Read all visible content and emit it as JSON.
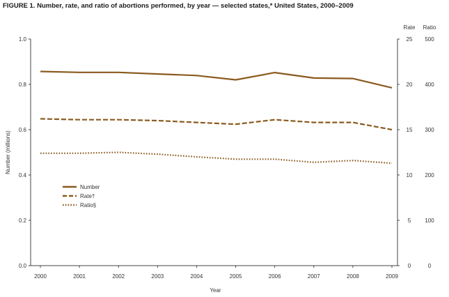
{
  "chart_data": {
    "type": "line",
    "title": "FIGURE 1. Number, rate, and ratio of abortions performed, by year — selected states,* United States, 2000–2009",
    "xlabel": "Year",
    "ylabel": "Number (millions)",
    "right_axis_headers": [
      "Rate",
      "Ratio"
    ],
    "x": [
      "2000",
      "2001",
      "2002",
      "2003",
      "2004",
      "2005",
      "2006",
      "2007",
      "2008",
      "2009"
    ],
    "y_left": {
      "range": [
        0,
        1.0
      ],
      "ticks": [
        "0.0",
        "0.2",
        "0.4",
        "0.6",
        "0.8",
        "1.0"
      ]
    },
    "y_rate": {
      "range": [
        0,
        25
      ],
      "ticks": [
        "0",
        "5",
        "10",
        "15",
        "20",
        "25"
      ]
    },
    "y_ratio": {
      "range": [
        0,
        500
      ],
      "ticks": [
        "0",
        "100",
        "200",
        "300",
        "400",
        "500"
      ]
    },
    "series": [
      {
        "name": "Number",
        "style": "solid",
        "axis": "left",
        "values": [
          0.857,
          0.853,
          0.853,
          0.846,
          0.839,
          0.82,
          0.852,
          0.828,
          0.826,
          0.785
        ]
      },
      {
        "name": "Rate†",
        "style": "dashed",
        "axis": "rate",
        "values": [
          16.2,
          16.1,
          16.1,
          16.0,
          15.8,
          15.6,
          16.1,
          15.8,
          15.8,
          15.0
        ]
      },
      {
        "name": "Ratio§",
        "style": "dotted",
        "axis": "ratio",
        "values": [
          248,
          248,
          250,
          246,
          240,
          235,
          235,
          228,
          232,
          226
        ]
      }
    ],
    "line_color": "#8a5a1e",
    "grid": false,
    "legend_position": "left-center"
  }
}
